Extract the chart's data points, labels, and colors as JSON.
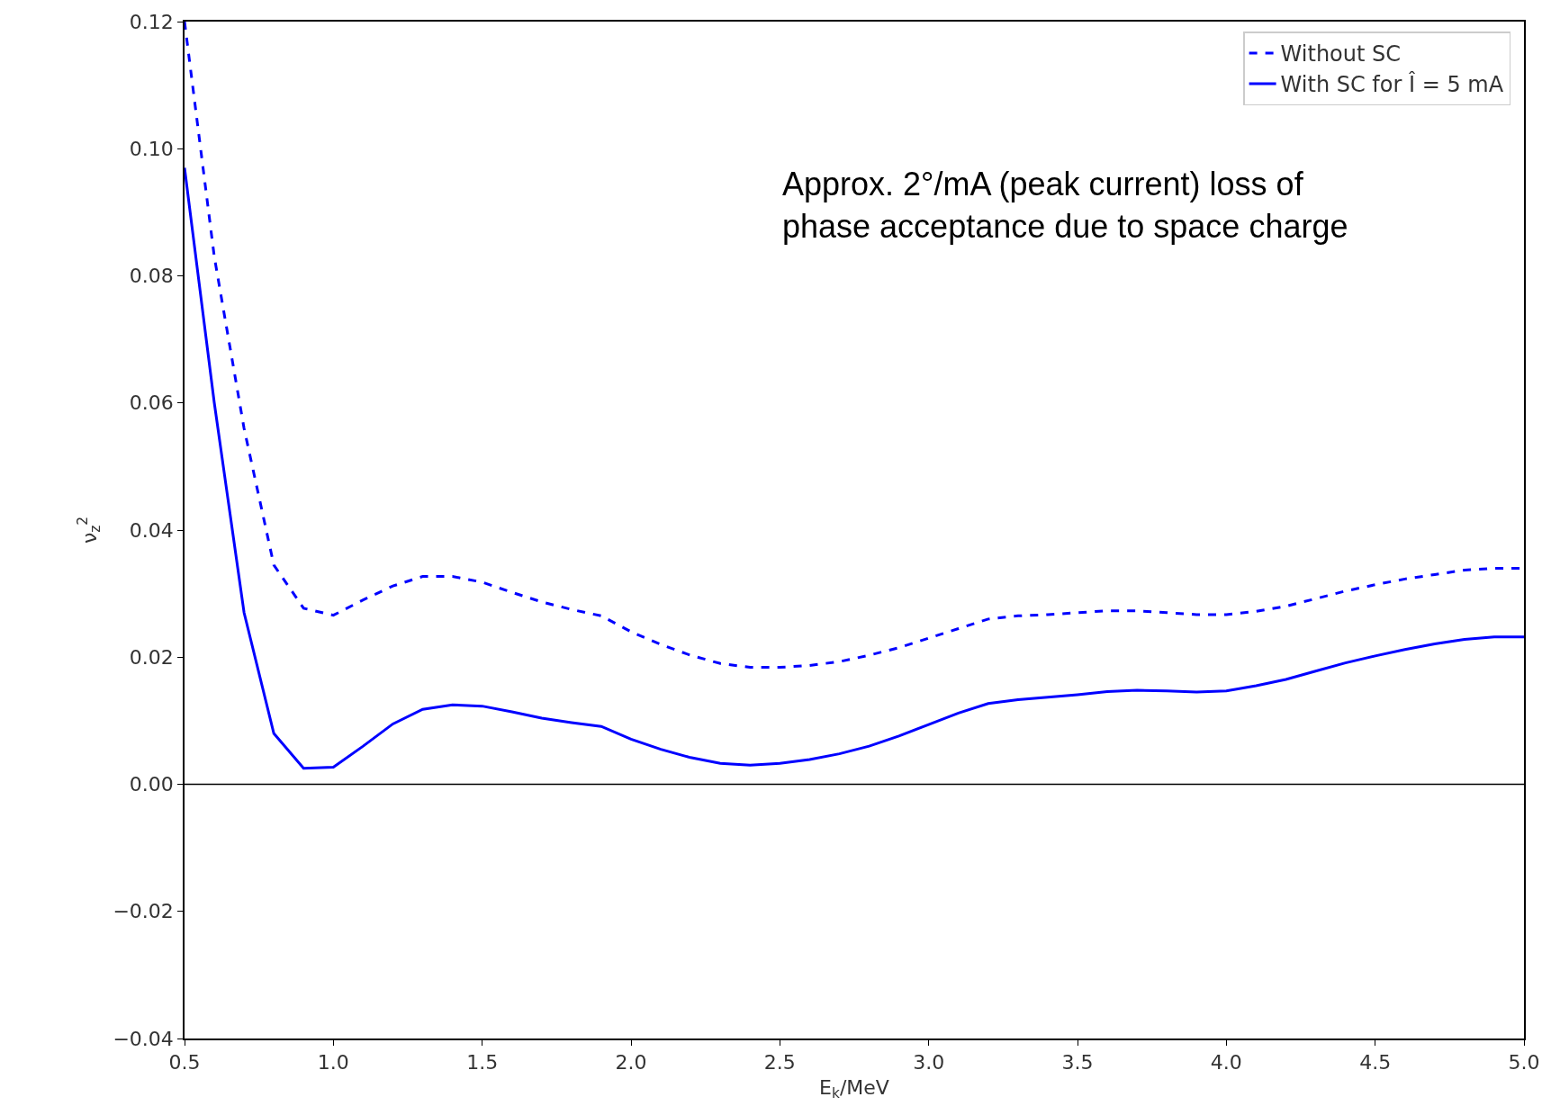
{
  "chart_data": {
    "type": "line",
    "xlabel": "E$_{k}$/MeV",
    "ylabel": "ν$_{z}$$^{2}$",
    "x": [
      0.5,
      0.6,
      0.7,
      0.8,
      0.9,
      1.0,
      1.1,
      1.2,
      1.3,
      1.4,
      1.5,
      1.6,
      1.7,
      1.8,
      1.9,
      2.0,
      2.1,
      2.2,
      2.3,
      2.4,
      2.5,
      2.6,
      2.7,
      2.8,
      2.9,
      3.0,
      3.1,
      3.2,
      3.3,
      3.4,
      3.5,
      3.6,
      3.7,
      3.8,
      3.9,
      4.0,
      4.1,
      4.2,
      4.3,
      4.4,
      4.5,
      4.6,
      4.7,
      4.8,
      4.9,
      5.0
    ],
    "series": [
      {
        "name": "Without SC",
        "color": "#0000ff",
        "line_style": "dashed",
        "values": [
          0.12,
          0.083,
          0.056,
          0.0345,
          0.0277,
          0.0266,
          0.029,
          0.0312,
          0.0327,
          0.0327,
          0.0318,
          0.0302,
          0.0287,
          0.0275,
          0.0265,
          0.024,
          0.022,
          0.0203,
          0.019,
          0.0184,
          0.0184,
          0.0187,
          0.0193,
          0.0203,
          0.0215,
          0.023,
          0.0245,
          0.026,
          0.0265,
          0.0267,
          0.027,
          0.0273,
          0.0273,
          0.027,
          0.0267,
          0.0267,
          0.0272,
          0.028,
          0.0292,
          0.0304,
          0.0314,
          0.0323,
          0.033,
          0.0337,
          0.034,
          0.034
        ]
      },
      {
        "name": "With SC for Î = 5 mA",
        "color": "#0000ff",
        "line_style": "solid",
        "values": [
          0.097,
          0.06,
          0.027,
          0.008,
          0.0025,
          0.0027,
          0.006,
          0.0095,
          0.0118,
          0.0125,
          0.0123,
          0.0114,
          0.0104,
          0.0097,
          0.0091,
          0.0071,
          0.0055,
          0.0042,
          0.0033,
          0.003,
          0.0033,
          0.0039,
          0.0048,
          0.006,
          0.0076,
          0.0094,
          0.0112,
          0.0127,
          0.0133,
          0.0137,
          0.0141,
          0.0146,
          0.0148,
          0.0147,
          0.0145,
          0.0147,
          0.0155,
          0.0165,
          0.0178,
          0.0191,
          0.0202,
          0.0212,
          0.0221,
          0.0228,
          0.0232,
          0.0232
        ]
      }
    ],
    "xlim": [
      0.5,
      5.0
    ],
    "xticks": [
      {
        "value": 0.5,
        "label": "0.5"
      },
      {
        "value": 1.0,
        "label": "1.0"
      },
      {
        "value": 1.5,
        "label": "1.5"
      },
      {
        "value": 2.0,
        "label": "2.0"
      },
      {
        "value": 2.5,
        "label": "2.5"
      },
      {
        "value": 3.0,
        "label": "3.0"
      },
      {
        "value": 3.5,
        "label": "3.5"
      },
      {
        "value": 4.0,
        "label": "4.0"
      },
      {
        "value": 4.5,
        "label": "4.5"
      },
      {
        "value": 5.0,
        "label": "5.0"
      }
    ],
    "ylim": [
      -0.04,
      0.12
    ],
    "yticks": [
      {
        "value": -0.04,
        "label": "−0.04"
      },
      {
        "value": -0.02,
        "label": "−0.02"
      },
      {
        "value": 0,
        "label": "0.00"
      },
      {
        "value": 0.02,
        "label": "0.02"
      },
      {
        "value": 0.04,
        "label": "0.04"
      },
      {
        "value": 0.06,
        "label": "0.06"
      },
      {
        "value": 0.08,
        "label": "0.08"
      },
      {
        "value": 0.1,
        "label": "0.10"
      },
      {
        "value": 0.12,
        "label": "0.12"
      }
    ],
    "ref_lines": [
      {
        "axis": "y",
        "value": 0,
        "color": "#000000"
      }
    ],
    "annotations": [
      "Approx. 2°/mA (peak current) loss of phase acceptance due to space charge"
    ],
    "legend": "top right"
  }
}
